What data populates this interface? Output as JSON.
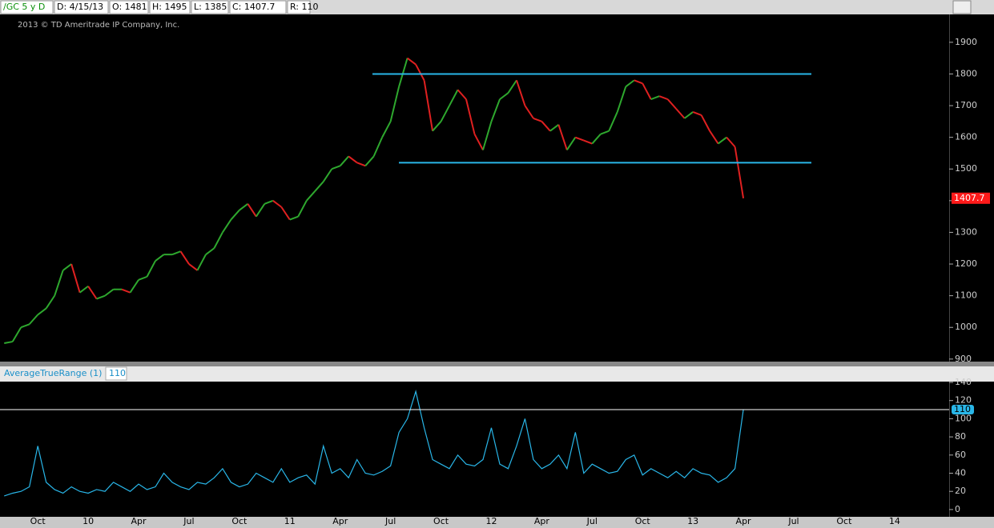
{
  "header": {
    "symbol": "/GC 5 y D",
    "date": "D: 4/15/13",
    "open": "O: 1481",
    "high": "H: 1495",
    "low": "L: 1385",
    "close": "C: 1407.7",
    "range": "R: 110",
    "copyright": "2013 © TD Ameritrade IP Company, Inc."
  },
  "chart_data": [
    {
      "type": "line",
      "name": "/GC",
      "up_color": "#2ea82e",
      "down_color": "#e02020",
      "last_color": "#ff1a1a",
      "categories": [
        null,
        null,
        null,
        null,
        "Oct",
        null,
        null,
        null,
        null,
        null,
        "10",
        null,
        null,
        null,
        null,
        null,
        "Apr",
        null,
        null,
        null,
        null,
        null,
        "Jul",
        null,
        null,
        null,
        null,
        null,
        "Oct",
        null,
        null,
        null,
        null,
        null,
        "11",
        null,
        null,
        null,
        null,
        null,
        "Apr",
        null,
        null,
        null,
        null,
        null,
        "Jul",
        null,
        null,
        null,
        null,
        null,
        "Oct",
        null,
        null,
        null,
        null,
        null,
        "12",
        null,
        null,
        null,
        null,
        null,
        "Apr",
        null,
        null,
        null,
        null,
        null,
        "Jul",
        null,
        null,
        null,
        null,
        null,
        "Oct",
        null,
        null,
        null,
        null,
        null,
        "13",
        null,
        null,
        null,
        null,
        null,
        "Apr",
        null,
        null,
        null,
        null,
        null,
        "Jul",
        null,
        null,
        null,
        null,
        null,
        "Oct",
        null,
        null,
        null,
        null,
        null,
        "14",
        null,
        null,
        null,
        null,
        null,
        null
      ],
      "values": [
        950,
        955,
        1000,
        1010,
        1040,
        1060,
        1100,
        1180,
        1200,
        1110,
        1130,
        1090,
        1100,
        1120,
        1120,
        1110,
        1150,
        1160,
        1210,
        1230,
        1230,
        1240,
        1200,
        1180,
        1230,
        1250,
        1300,
        1340,
        1370,
        1390,
        1350,
        1390,
        1400,
        1380,
        1340,
        1350,
        1400,
        1430,
        1460,
        1500,
        1510,
        1540,
        1520,
        1510,
        1540,
        1600,
        1650,
        1760,
        1850,
        1830,
        1780,
        1620,
        1650,
        1700,
        1750,
        1720,
        1610,
        1560,
        1650,
        1720,
        1740,
        1780,
        1700,
        1660,
        1650,
        1620,
        1640,
        1560,
        1600,
        1590,
        1580,
        1610,
        1620,
        1680,
        1760,
        1780,
        1770,
        1720,
        1730,
        1720,
        1690,
        1660,
        1680,
        1670,
        1620,
        1580,
        1600,
        1570,
        1407.7,
        null,
        null,
        null,
        null,
        null,
        null,
        null,
        null,
        null,
        null,
        null,
        null,
        null,
        null,
        null,
        null,
        null,
        null,
        null,
        null,
        null,
        null,
        null,
        null
      ],
      "levels": [
        1800,
        1520
      ],
      "level_color": "#29b6e8",
      "ylim": [
        892,
        1988
      ],
      "yticks": [
        900,
        1000,
        1100,
        1200,
        1300,
        1400,
        1500,
        1600,
        1700,
        1800,
        1900
      ]
    },
    {
      "type": "line",
      "title": "AverageTrueRange (1)",
      "color": "#29b6e8",
      "values": [
        15,
        18,
        20,
        25,
        70,
        30,
        22,
        18,
        25,
        20,
        18,
        22,
        20,
        30,
        25,
        20,
        28,
        22,
        25,
        40,
        30,
        25,
        22,
        30,
        28,
        35,
        45,
        30,
        25,
        28,
        40,
        35,
        30,
        45,
        30,
        35,
        38,
        28,
        70,
        40,
        45,
        35,
        55,
        40,
        38,
        42,
        48,
        85,
        100,
        130,
        90,
        55,
        50,
        45,
        60,
        50,
        48,
        55,
        90,
        50,
        45,
        70,
        100,
        55,
        45,
        50,
        60,
        45,
        85,
        40,
        50,
        45,
        40,
        42,
        55,
        60,
        38,
        45,
        40,
        35,
        42,
        35,
        45,
        40,
        38,
        30,
        35,
        45,
        110,
        null,
        null,
        null,
        null,
        null,
        null,
        null,
        null,
        null,
        null,
        null,
        null,
        null,
        null,
        null,
        null,
        null,
        null,
        null,
        null,
        null,
        null,
        null,
        null
      ],
      "ylim": [
        -8,
        140
      ],
      "yticks": [
        0,
        20,
        40,
        60,
        80,
        100,
        120,
        140
      ]
    }
  ]
}
